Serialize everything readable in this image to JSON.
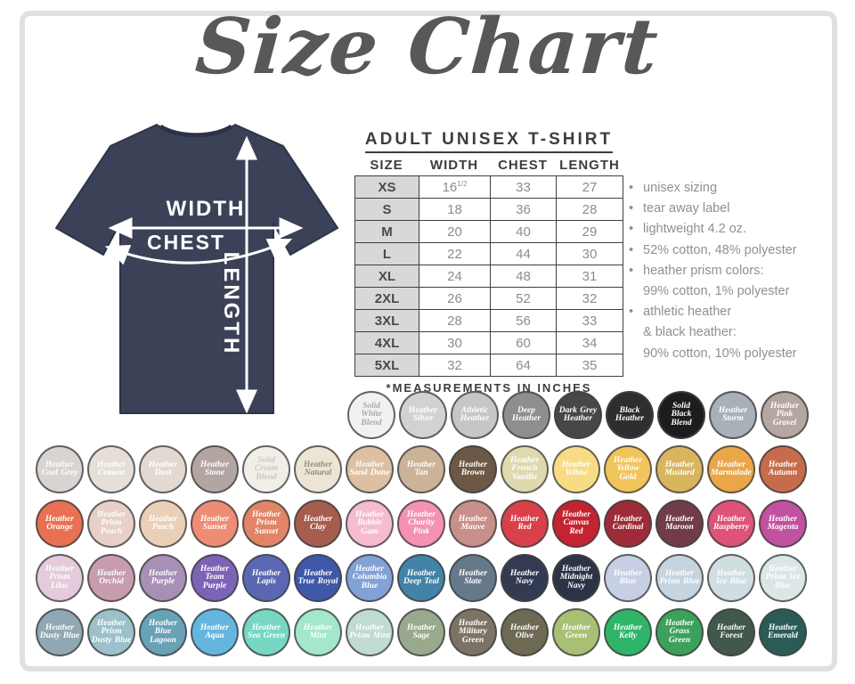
{
  "title": "Size Chart",
  "shirt": {
    "width_label": "WIDTH",
    "chest_label": "CHEST",
    "length_label": "LENGTH",
    "color": "#3b4258"
  },
  "table": {
    "heading": "ADULT UNISEX T-SHIRT",
    "columns": [
      "SIZE",
      "WIDTH",
      "CHEST",
      "LENGTH"
    ],
    "rows": [
      [
        "XS",
        "16½",
        "33",
        "27"
      ],
      [
        "S",
        "18",
        "36",
        "28"
      ],
      [
        "M",
        "20",
        "40",
        "29"
      ],
      [
        "L",
        "22",
        "44",
        "30"
      ],
      [
        "XL",
        "24",
        "48",
        "31"
      ],
      [
        "2XL",
        "26",
        "52",
        "32"
      ],
      [
        "3XL",
        "28",
        "56",
        "33"
      ],
      [
        "4XL",
        "30",
        "60",
        "34"
      ],
      [
        "5XL",
        "32",
        "64",
        "35"
      ]
    ],
    "footnote": "*MEASUREMENTS IN INCHES"
  },
  "features": [
    {
      "b": 1,
      "t": "unisex sizing"
    },
    {
      "b": 1,
      "t": "tear away label"
    },
    {
      "b": 1,
      "t": "lightweight 4.2 oz."
    },
    {
      "b": 1,
      "t": "52% cotton, 48% polyester"
    },
    {
      "b": 1,
      "t": "heather prism colors:"
    },
    {
      "b": 0,
      "t": "99% cotton, 1% polyester"
    },
    {
      "b": 1,
      "t": "athletic heather"
    },
    {
      "b": 0,
      "t": "& black heather:"
    },
    {
      "b": 0,
      "t": "90% cotton, 10% polyester"
    }
  ],
  "swatch_rows": [
    [
      {
        "n": "Solid White Blend",
        "c": "#f2f1ef",
        "tc": "#a9a9a9"
      },
      {
        "n": "Heather Silver",
        "c": "#d3d2d0"
      },
      {
        "n": "Athletic Heather",
        "c": "#c6c6c6"
      },
      {
        "n": "Deep Heather",
        "c": "#8e8e90"
      },
      {
        "n": "Dark Grey Heather",
        "c": "#474747"
      },
      {
        "n": "Black Heather",
        "c": "#2e2e2e"
      },
      {
        "n": "Solid Black Blend",
        "c": "#1d1d1d"
      },
      {
        "n": "Heather Storm",
        "c": "#a9b0ba"
      },
      {
        "n": "Heather Pink Gravel",
        "c": "#b5a6a0"
      }
    ],
    [
      {
        "n": "Heather Cool Grey",
        "c": "#d9d4d2"
      },
      {
        "n": "Heather Cement",
        "c": "#e6dfd7"
      },
      {
        "n": "Heather Dust",
        "c": "#e3d9d0"
      },
      {
        "n": "Heather Stone",
        "c": "#b3a6a2"
      },
      {
        "n": "Solid Cream Blend",
        "c": "#f1eee7",
        "tc": "#cfc9bd"
      },
      {
        "n": "Heather Natural",
        "c": "#ece4d4",
        "tc": "#958a7a"
      },
      {
        "n": "Heather Sand Dune",
        "c": "#ddc0a2"
      },
      {
        "n": "Heather Tan",
        "c": "#ccb398"
      },
      {
        "n": "Heather Brown",
        "c": "#6d5845"
      },
      {
        "n": "Heather French Vanilla",
        "c": "#ded9ae"
      },
      {
        "n": "Heather Yellow",
        "c": "#f8dc85"
      },
      {
        "n": "Heather Yellow Gold",
        "c": "#f2c45c"
      },
      {
        "n": "Heather Mustard",
        "c": "#d9b55e"
      },
      {
        "n": "Heather Marmalade",
        "c": "#eaa648"
      },
      {
        "n": "Heather Autumn",
        "c": "#c66c4c"
      }
    ],
    [
      {
        "n": "Heather Orange",
        "c": "#ea7053"
      },
      {
        "n": "Heather Prism Peach",
        "c": "#e6d0c8"
      },
      {
        "n": "Heather Peach",
        "c": "#ead0b7"
      },
      {
        "n": "Heather Sunset",
        "c": "#ee8d75"
      },
      {
        "n": "Heather Prism Sunset",
        "c": "#e18468"
      },
      {
        "n": "Heather Clay",
        "c": "#a65d4e"
      },
      {
        "n": "Heather Bubble Gum",
        "c": "#f5bbd0"
      },
      {
        "n": "Heather Charity Pink",
        "c": "#f491b5"
      },
      {
        "n": "Heather Mauve",
        "c": "#c98f8a"
      },
      {
        "n": "Heather Red",
        "c": "#da4049"
      },
      {
        "n": "Heather Canvas Red",
        "c": "#c32430"
      },
      {
        "n": "Heather Cardinal",
        "c": "#9e2b37"
      },
      {
        "n": "Heather Maroon",
        "c": "#703c49"
      },
      {
        "n": "Heather Raspberry",
        "c": "#de5378"
      },
      {
        "n": "Heather Magenta",
        "c": "#c152a0"
      }
    ],
    [
      {
        "n": "Heather Prism Lilac",
        "c": "#e4cada"
      },
      {
        "n": "Heather Orchid",
        "c": "#c79cae"
      },
      {
        "n": "Heather Purple",
        "c": "#a78fb6"
      },
      {
        "n": "Heather Team Purple",
        "c": "#7d63b5"
      },
      {
        "n": "Heather Lapis",
        "c": "#5a68b4"
      },
      {
        "n": "Heather True Royal",
        "c": "#4058a8"
      },
      {
        "n": "Heather Columbia Blue",
        "c": "#82a2d5"
      },
      {
        "n": "Heather Deep Teal",
        "c": "#4383a7"
      },
      {
        "n": "Heather Slate",
        "c": "#66798b"
      },
      {
        "n": "Heather Navy",
        "c": "#333b52"
      },
      {
        "n": "Heather Midnight Navy",
        "c": "#2d3347"
      },
      {
        "n": "Heather Blue",
        "c": "#c6cfe4"
      },
      {
        "n": "Heather Prism Blue",
        "c": "#c6d4df"
      },
      {
        "n": "Heather Ice Blue",
        "c": "#d1dee1"
      },
      {
        "n": "Heather Prism Ice Blue",
        "c": "#dbe7e6"
      }
    ],
    [
      {
        "n": "Heather Dusty Blue",
        "c": "#90a8b3"
      },
      {
        "n": "Heather Prism Dusty Blue",
        "c": "#9cc1ca"
      },
      {
        "n": "Heather Blue Lagoon",
        "c": "#68a2b7"
      },
      {
        "n": "Heather Aqua",
        "c": "#65b6de"
      },
      {
        "n": "Heather Sea Green",
        "c": "#78d7c3"
      },
      {
        "n": "Heather Mint",
        "c": "#a3e7cd"
      },
      {
        "n": "Heather Prism Mint",
        "c": "#c0dbd0"
      },
      {
        "n": "Heather Sage",
        "c": "#98a98d"
      },
      {
        "n": "Heather Military Green",
        "c": "#7b7365"
      },
      {
        "n": "Heather Olive",
        "c": "#6d6953"
      },
      {
        "n": "Heather Green",
        "c": "#a8c073"
      },
      {
        "n": "Heather Kelly",
        "c": "#2fb568"
      },
      {
        "n": "Heather Grass Green",
        "c": "#3ba15c"
      },
      {
        "n": "Heather Forest",
        "c": "#41584b"
      },
      {
        "n": "Heather Emerald",
        "c": "#2b5b57"
      }
    ]
  ]
}
